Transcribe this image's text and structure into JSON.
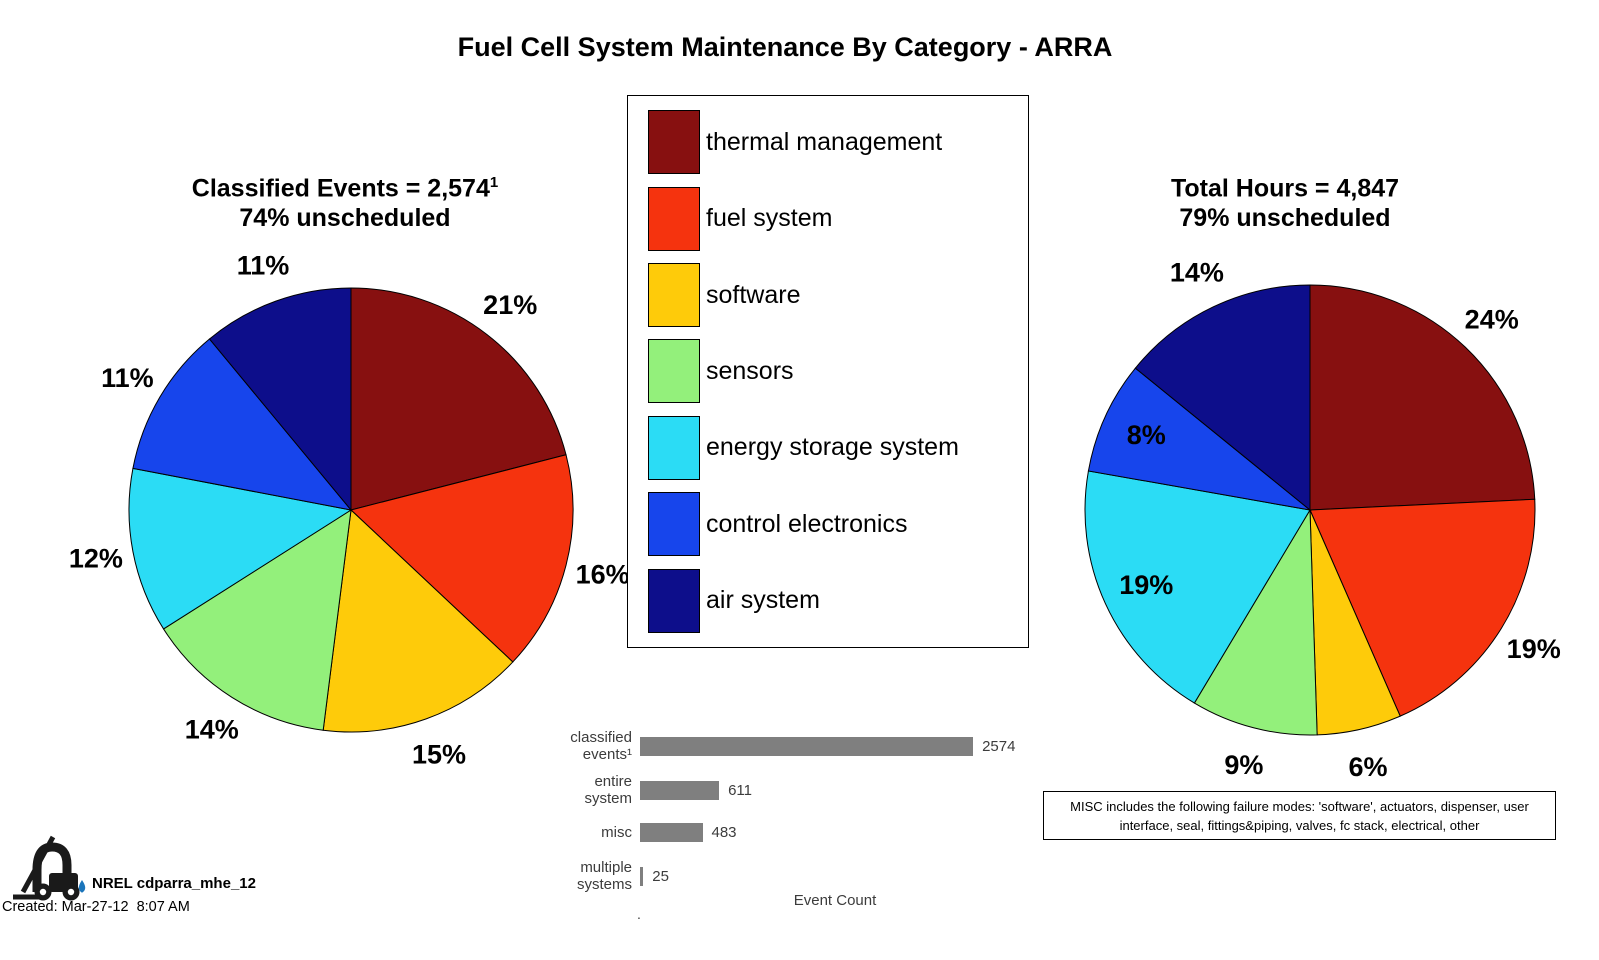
{
  "page_title": "Fuel Cell System Maintenance By Category - ARRA",
  "legend": {
    "items": [
      {
        "label": "thermal management",
        "color": "#871010"
      },
      {
        "label": "fuel system",
        "color": "#F5330E"
      },
      {
        "label": "software",
        "color": "#FECB0A"
      },
      {
        "label": "sensors",
        "color": "#93F07B"
      },
      {
        "label": "energy storage system",
        "color": "#2BDCF5"
      },
      {
        "label": "control electronics",
        "color": "#1745EC"
      },
      {
        "label": "air system",
        "color": "#0D0E8B"
      }
    ]
  },
  "chart_data": [
    {
      "type": "pie",
      "name": "classified-events-by-category",
      "title": "Classified Events = 2,574",
      "title_superscript": "1",
      "subtitle": "74% unscheduled",
      "categories": [
        "thermal management",
        "fuel system",
        "software",
        "sensors",
        "energy storage system",
        "control electronics",
        "air system"
      ],
      "values": [
        21,
        16,
        15,
        14,
        12,
        11,
        11
      ],
      "unit": "%",
      "colors": [
        "#871010",
        "#F5330E",
        "#FECB0A",
        "#93F07B",
        "#2BDCF5",
        "#1745EC",
        "#0D0E8B"
      ],
      "start_angle": "12-oclock",
      "direction": "clockwise",
      "legend_position": "center-top"
    },
    {
      "type": "pie",
      "name": "total-hours-by-category",
      "title": "Total Hours = 4,847",
      "title_superscript": "",
      "subtitle": "79% unscheduled",
      "categories": [
        "thermal management",
        "fuel system",
        "software",
        "sensors",
        "energy storage system",
        "control electronics",
        "air system"
      ],
      "values": [
        24,
        19,
        6,
        9,
        19,
        8,
        14
      ],
      "unit": "%",
      "colors": [
        "#871010",
        "#F5330E",
        "#FECB0A",
        "#93F07B",
        "#2BDCF5",
        "#1745EC",
        "#0D0E8B"
      ],
      "start_angle": "12-oclock",
      "direction": "clockwise"
    },
    {
      "type": "bar",
      "name": "event-count",
      "orientation": "horizontal",
      "categories": [
        "classified\nevents¹",
        "entire\nsystem",
        "misc",
        "multiple\nsystems"
      ],
      "values": [
        2574,
        611,
        483,
        25
      ],
      "value_labels": [
        "2574",
        "611",
        "483",
        "25"
      ],
      "xlabel": "Event Count",
      "axis_dot": ".",
      "bar_color": "#7F7F7F",
      "xlim": [
        0,
        2700
      ],
      "grid": false
    }
  ],
  "misc_note": {
    "line1": "MISC includes the following failure modes: 'software', actuators, dispenser, user",
    "line2": "interface, seal, fittings&piping, valves, fc stack, electrical, other"
  },
  "footer": {
    "brand": "NREL cdparra_mhe_12",
    "created": "Created: Mar-27-12  8:07 AM",
    "logo": "forklift-with-droplet-icon",
    "logo_color": "#1a1a1a",
    "droplet_color": "#1B75BB"
  }
}
